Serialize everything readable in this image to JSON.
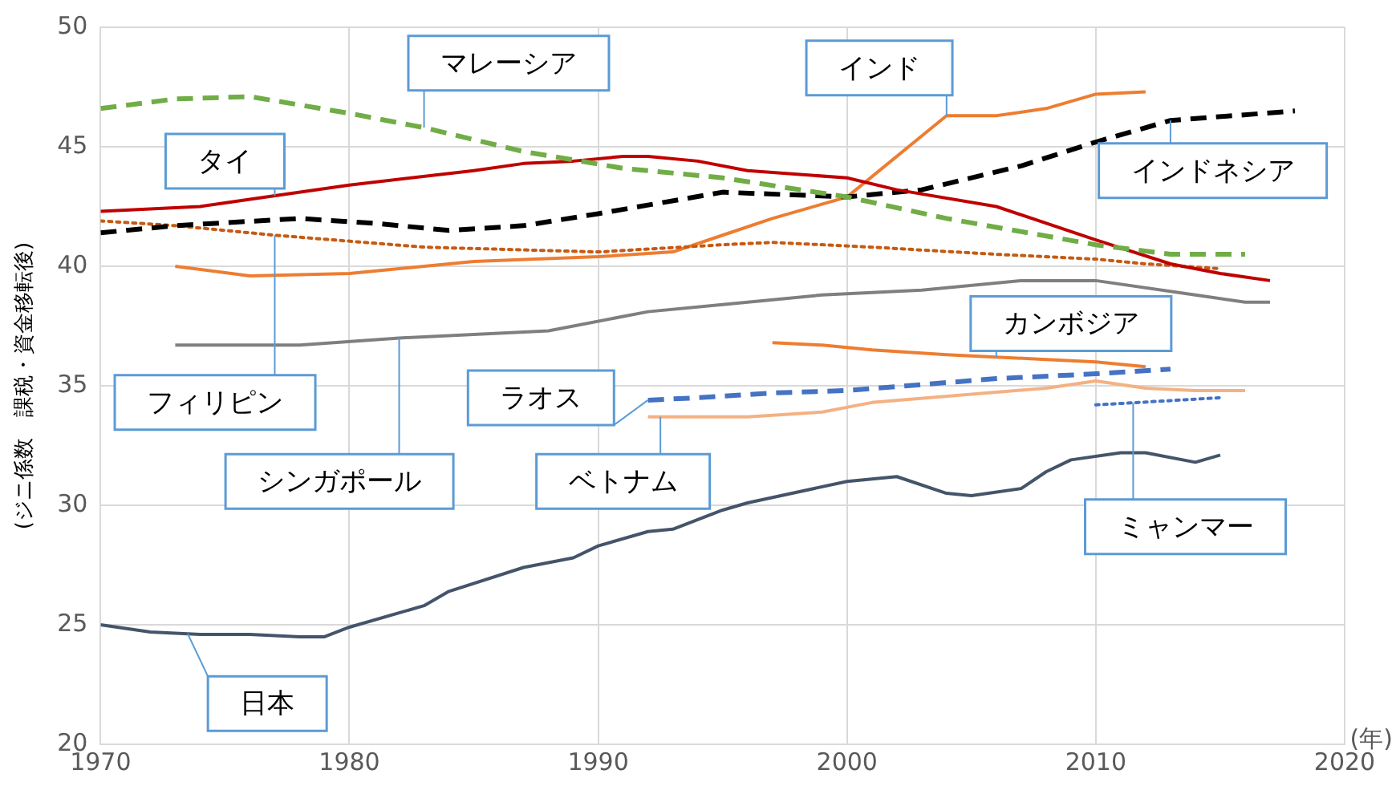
{
  "chart_data": {
    "type": "line",
    "xlabel": "(年)",
    "ylabel": "(ジニ係数　課税・資金移転後)",
    "xlim": [
      1970,
      2020
    ],
    "xticks": [
      1970,
      1980,
      1990,
      2000,
      2010,
      2020
    ],
    "ylim": [
      20,
      50
    ],
    "yticks": [
      20,
      25,
      30,
      35,
      40,
      45,
      50
    ],
    "grid": true,
    "legend": false,
    "marker": "none",
    "series": [
      {
        "name": "マレーシア",
        "color": "#70ad47",
        "line_style": "dashed",
        "x": [
          1970,
          1973,
          1976,
          1980,
          1983,
          1987,
          1991,
          1995,
          2000,
          2004,
          2010,
          2013,
          2016
        ],
        "values": [
          46.6,
          47.0,
          47.1,
          46.4,
          45.8,
          44.8,
          44.1,
          43.7,
          42.9,
          42.0,
          40.9,
          40.5,
          40.5
        ]
      },
      {
        "name": "タイ",
        "color": "#c00000",
        "line_style": "solid",
        "x": [
          1970,
          1974,
          1976,
          1980,
          1985,
          1987,
          1989,
          1991,
          1992,
          1994,
          1996,
          2000,
          2002,
          2006,
          2010,
          2013,
          2015,
          2017
        ],
        "values": [
          42.3,
          42.5,
          42.8,
          43.4,
          44.0,
          44.3,
          44.4,
          44.6,
          44.6,
          44.4,
          44.0,
          43.7,
          43.2,
          42.5,
          41.1,
          40.1,
          39.7,
          39.4
        ]
      },
      {
        "name": "インドネシア",
        "color": "#000000",
        "line_style": "dashed",
        "x": [
          1970,
          1973,
          1978,
          1981,
          1984,
          1987,
          1990,
          1995,
          2000,
          2003,
          2007,
          2010,
          2013,
          2018
        ],
        "values": [
          41.4,
          41.7,
          42.0,
          41.8,
          41.5,
          41.7,
          42.2,
          43.1,
          42.9,
          43.2,
          44.2,
          45.2,
          46.1,
          46.5
        ]
      },
      {
        "name": "フィリピン",
        "color": "#c55a11",
        "line_style": "dotted",
        "x": [
          1970,
          1973,
          1977,
          1983,
          1990,
          1995,
          1997,
          2001,
          2006,
          2010,
          2012,
          2015
        ],
        "values": [
          41.9,
          41.7,
          41.3,
          40.8,
          40.6,
          40.9,
          41.0,
          40.8,
          40.5,
          40.3,
          40.1,
          39.9
        ]
      },
      {
        "name": "インド",
        "color": "#ed7d31",
        "line_style": "solid",
        "x": [
          1973,
          1976,
          1980,
          1985,
          1990,
          1993,
          1995,
          1997,
          2000,
          2004,
          2006,
          2008,
          2010,
          2012
        ],
        "values": [
          40.0,
          39.6,
          39.7,
          40.2,
          40.4,
          40.6,
          41.3,
          42.0,
          42.9,
          46.3,
          46.3,
          46.6,
          47.2,
          47.3
        ]
      },
      {
        "name": "シンガポール",
        "color": "#7f7f7f",
        "line_style": "solid",
        "x": [
          1973,
          1978,
          1982,
          1988,
          1992,
          1995,
          1999,
          2003,
          2007,
          2010,
          2014,
          2016,
          2017
        ],
        "values": [
          36.7,
          36.7,
          37.0,
          37.3,
          38.1,
          38.4,
          38.8,
          39.0,
          39.4,
          39.4,
          38.8,
          38.5,
          38.5
        ]
      },
      {
        "name": "カンボジア",
        "color": "#ed7d31",
        "line_style": "solid",
        "x": [
          1997,
          1999,
          2001,
          2004,
          2008,
          2010,
          2012
        ],
        "values": [
          36.8,
          36.7,
          36.5,
          36.3,
          36.1,
          36.0,
          35.8
        ]
      },
      {
        "name": "ラオス",
        "color": "#4472c4",
        "line_style": "dashed",
        "x": [
          1992,
          1994,
          1997,
          2000,
          2006,
          2010,
          2013
        ],
        "values": [
          34.4,
          34.5,
          34.7,
          34.8,
          35.3,
          35.5,
          35.7
        ]
      },
      {
        "name": "ベトナム",
        "color": "#f4b183",
        "line_style": "solid",
        "x": [
          1992,
          1996,
          1999,
          2001,
          2008,
          2010,
          2012,
          2014,
          2016
        ],
        "values": [
          33.7,
          33.7,
          33.9,
          34.3,
          34.9,
          35.2,
          34.9,
          34.8,
          34.8
        ]
      },
      {
        "name": "ミャンマー",
        "color": "#4472c4",
        "line_style": "dotted",
        "x": [
          2010,
          2015
        ],
        "values": [
          34.2,
          34.5
        ]
      },
      {
        "name": "日本",
        "color": "#44546a",
        "line_style": "solid",
        "x": [
          1970,
          1972,
          1974,
          1976,
          1978,
          1979,
          1980,
          1983,
          1984,
          1987,
          1989,
          1990,
          1992,
          1993,
          1995,
          1996,
          2000,
          2002,
          2004,
          2005,
          2007,
          2008,
          2009,
          2011,
          2012,
          2014,
          2015
        ],
        "values": [
          25.0,
          24.7,
          24.6,
          24.6,
          24.5,
          24.5,
          24.9,
          25.8,
          26.4,
          27.4,
          27.8,
          28.3,
          28.9,
          29.0,
          29.8,
          30.1,
          31.0,
          31.2,
          30.5,
          30.4,
          30.7,
          31.4,
          31.9,
          32.2,
          32.2,
          31.8,
          32.1
        ]
      }
    ]
  }
}
